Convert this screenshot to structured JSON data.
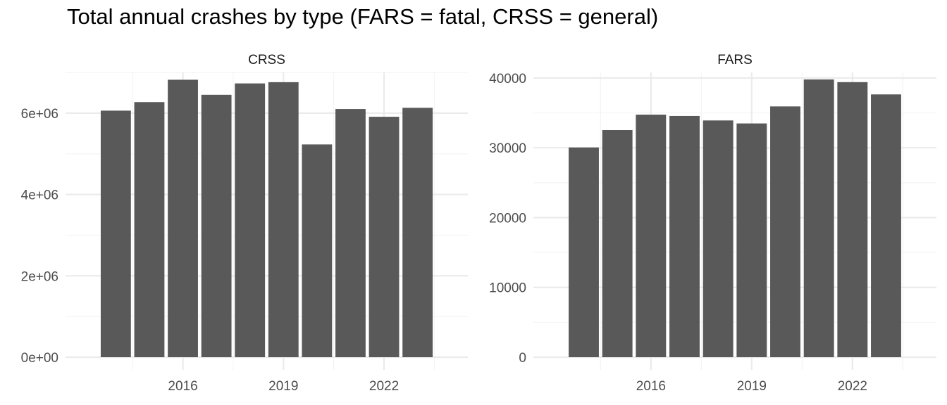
{
  "chart_data": {
    "type": "bar",
    "title": "Total annual crashes by type (FARS = fatal, CRSS = general)",
    "categories": [
      2014,
      2015,
      2016,
      2017,
      2018,
      2019,
      2020,
      2021,
      2022,
      2023
    ],
    "x_tick_labels": [
      "2016",
      "2019",
      "2022"
    ],
    "grid": true,
    "panels": [
      {
        "name": "CRSS",
        "values": [
          6060000,
          6270000,
          6820000,
          6450000,
          6730000,
          6760000,
          5230000,
          6100000,
          5910000,
          6130000
        ],
        "ylim": [
          0,
          7000000
        ],
        "y_ticks": [
          0,
          2000000,
          4000000,
          6000000
        ],
        "y_tick_labels": [
          "0e+00",
          "2e+06",
          "4e+06",
          "6e+06"
        ]
      },
      {
        "name": "FARS",
        "values": [
          30050,
          32540,
          34750,
          34560,
          33920,
          33490,
          35930,
          39790,
          39410,
          37650
        ],
        "ylim": [
          0,
          40800
        ],
        "y_ticks": [
          0,
          10000,
          20000,
          30000,
          40000
        ],
        "y_tick_labels": [
          "0",
          "10000",
          "20000",
          "30000",
          "40000"
        ]
      }
    ],
    "colors": {
      "bar": "#595959",
      "grid_major": "#ebebeb",
      "grid_minor": "#f4f4f4",
      "axis_text": "#4d4d4d",
      "strip_text": "#1a1a1a"
    }
  }
}
